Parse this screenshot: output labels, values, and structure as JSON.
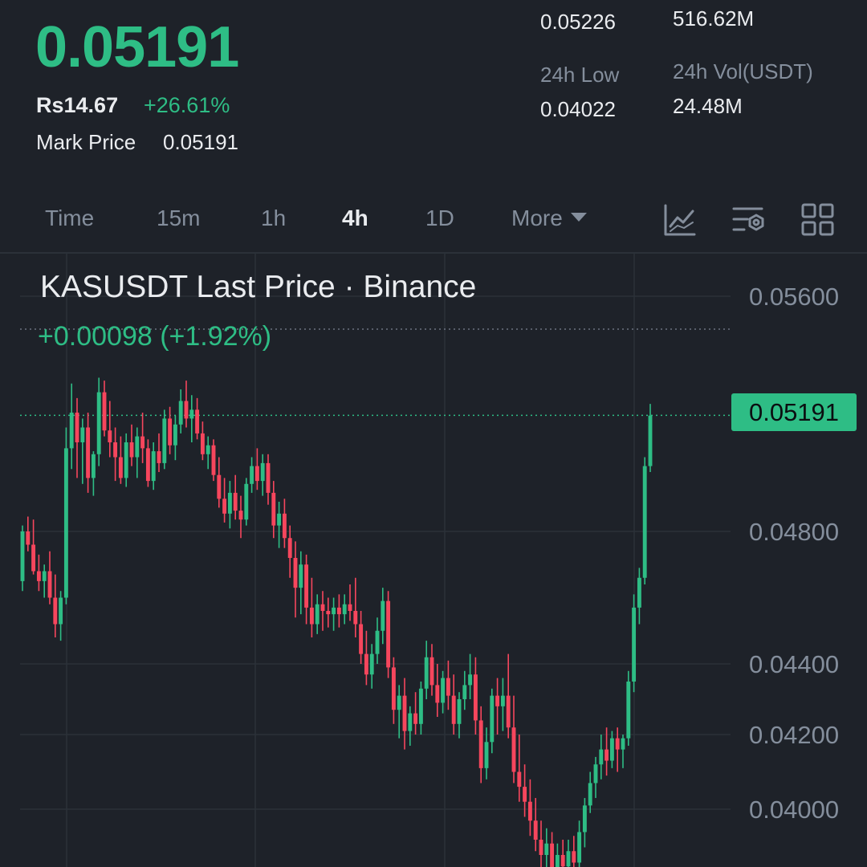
{
  "header": {
    "last_price": "0.05191",
    "fiat_price": "Rs14.67",
    "change_pct": "+26.61%",
    "mark_price_label": "Mark Price",
    "mark_price_value": "0.05191",
    "stats": {
      "high_value": "0.05226",
      "vol_kas_value": "516.62M",
      "low_label": "24h Low",
      "low_value": "0.04022",
      "vol_usdt_label": "24h Vol(USDT)",
      "vol_usdt_value": "24.48M"
    }
  },
  "timeframe_tabs": [
    {
      "label": "Time",
      "active": false
    },
    {
      "label": "15m",
      "active": false
    },
    {
      "label": "1h",
      "active": false
    },
    {
      "label": "4h",
      "active": true
    },
    {
      "label": "1D",
      "active": false
    },
    {
      "label": "More",
      "active": false
    }
  ],
  "toolbar_icons": [
    "indicator-icon",
    "chart-settings-icon",
    "grid-layout-icon"
  ],
  "colors": {
    "up": "#2ebd85",
    "down": "#f6465d",
    "background": "#1e2229",
    "grid": "#2b3139"
  },
  "chart_data": {
    "type": "candlestick",
    "title": "KASUSDT Last Price · Binance",
    "change_text": "+0.00098 (+1.92%)",
    "y_ticks": [
      "0.05600",
      "0.04800",
      "0.04400",
      "0.04200",
      "0.04000"
    ],
    "y_tick_values": [
      0.056,
      0.048,
      0.044,
      0.042,
      0.04
    ],
    "current_price_label": "0.05191",
    "current_price": 0.05191,
    "ylim": [
      0.0385,
      0.0575
    ],
    "candles": [
      [
        0.0465,
        0.0482,
        0.0462,
        0.048
      ],
      [
        0.048,
        0.0485,
        0.0474,
        0.0476
      ],
      [
        0.0476,
        0.0484,
        0.0467,
        0.0468
      ],
      [
        0.0468,
        0.0473,
        0.0462,
        0.0465
      ],
      [
        0.0465,
        0.047,
        0.046,
        0.0468
      ],
      [
        0.0468,
        0.0474,
        0.0458,
        0.046
      ],
      [
        0.046,
        0.0467,
        0.0448,
        0.0452
      ],
      [
        0.0452,
        0.0462,
        0.0447,
        0.046
      ],
      [
        0.046,
        0.0515,
        0.0458,
        0.0508
      ],
      [
        0.0508,
        0.053,
        0.0501,
        0.052
      ],
      [
        0.052,
        0.0525,
        0.0498,
        0.051
      ],
      [
        0.051,
        0.0518,
        0.0496,
        0.0515
      ],
      [
        0.0515,
        0.052,
        0.0493,
        0.0498
      ],
      [
        0.0498,
        0.0507,
        0.0492,
        0.0506
      ],
      [
        0.0506,
        0.0532,
        0.0502,
        0.0527
      ],
      [
        0.0527,
        0.0531,
        0.0512,
        0.0514
      ],
      [
        0.0514,
        0.0524,
        0.0505,
        0.051
      ],
      [
        0.051,
        0.0515,
        0.0497,
        0.0505
      ],
      [
        0.0505,
        0.0512,
        0.0496,
        0.0498
      ],
      [
        0.0498,
        0.0513,
        0.0495,
        0.051
      ],
      [
        0.051,
        0.0516,
        0.0502,
        0.0505
      ],
      [
        0.0505,
        0.0515,
        0.0498,
        0.0512
      ],
      [
        0.0512,
        0.052,
        0.0503,
        0.0508
      ],
      [
        0.0508,
        0.0511,
        0.0495,
        0.0497
      ],
      [
        0.0497,
        0.051,
        0.0494,
        0.0507
      ],
      [
        0.0507,
        0.0513,
        0.05,
        0.0503
      ],
      [
        0.0503,
        0.0521,
        0.0501,
        0.0518
      ],
      [
        0.0518,
        0.0522,
        0.0506,
        0.0509
      ],
      [
        0.0509,
        0.0519,
        0.0504,
        0.0516
      ],
      [
        0.0516,
        0.0528,
        0.0513,
        0.0524
      ],
      [
        0.0524,
        0.0531,
        0.0515,
        0.0518
      ],
      [
        0.0518,
        0.0526,
        0.051,
        0.0521
      ],
      [
        0.0521,
        0.0525,
        0.0511,
        0.0513
      ],
      [
        0.0513,
        0.0517,
        0.0504,
        0.0506
      ],
      [
        0.0506,
        0.0512,
        0.0501,
        0.0509
      ],
      [
        0.0509,
        0.0511,
        0.0497,
        0.0499
      ],
      [
        0.0499,
        0.0505,
        0.0488,
        0.0491
      ],
      [
        0.0491,
        0.0498,
        0.0483,
        0.0486
      ],
      [
        0.0486,
        0.0497,
        0.0481,
        0.0493
      ],
      [
        0.0493,
        0.0499,
        0.0484,
        0.0487
      ],
      [
        0.0487,
        0.0492,
        0.0478,
        0.0484
      ],
      [
        0.0484,
        0.0498,
        0.0482,
        0.0496
      ],
      [
        0.0496,
        0.0505,
        0.0493,
        0.0502
      ],
      [
        0.0502,
        0.0508,
        0.0494,
        0.0497
      ],
      [
        0.0497,
        0.0506,
        0.0492,
        0.0503
      ],
      [
        0.0503,
        0.0506,
        0.0489,
        0.0493
      ],
      [
        0.0493,
        0.0497,
        0.0478,
        0.0482
      ],
      [
        0.0482,
        0.049,
        0.0475,
        0.0486
      ],
      [
        0.0486,
        0.0491,
        0.0475,
        0.0478
      ],
      [
        0.0478,
        0.0482,
        0.0466,
        0.0472
      ],
      [
        0.0472,
        0.0477,
        0.0454,
        0.0463
      ],
      [
        0.0463,
        0.0474,
        0.0455,
        0.047
      ],
      [
        0.047,
        0.0473,
        0.0452,
        0.0457
      ],
      [
        0.0457,
        0.0466,
        0.0448,
        0.0452
      ],
      [
        0.0452,
        0.0461,
        0.0449,
        0.0458
      ],
      [
        0.0458,
        0.0462,
        0.045,
        0.0456
      ],
      [
        0.0456,
        0.046,
        0.0451,
        0.0455
      ],
      [
        0.0455,
        0.046,
        0.045,
        0.0457
      ],
      [
        0.0457,
        0.0461,
        0.0451,
        0.0455
      ],
      [
        0.0455,
        0.0461,
        0.0452,
        0.0458
      ],
      [
        0.0458,
        0.0464,
        0.0453,
        0.0456
      ],
      [
        0.0456,
        0.0466,
        0.0448,
        0.0452
      ],
      [
        0.0452,
        0.0456,
        0.044,
        0.0443
      ],
      [
        0.0443,
        0.045,
        0.0434,
        0.0437
      ],
      [
        0.0437,
        0.0446,
        0.0433,
        0.0443
      ],
      [
        0.0443,
        0.0454,
        0.044,
        0.045
      ],
      [
        0.045,
        0.0463,
        0.0446,
        0.0459
      ],
      [
        0.0459,
        0.0462,
        0.0436,
        0.0439
      ],
      [
        0.0439,
        0.0442,
        0.0423,
        0.0427
      ],
      [
        0.0427,
        0.0434,
        0.0419,
        0.0431
      ],
      [
        0.0431,
        0.0436,
        0.0416,
        0.0421
      ],
      [
        0.0421,
        0.0428,
        0.0417,
        0.0426
      ],
      [
        0.0426,
        0.0432,
        0.042,
        0.0423
      ],
      [
        0.0423,
        0.0435,
        0.042,
        0.0433
      ],
      [
        0.0433,
        0.0447,
        0.043,
        0.0442
      ],
      [
        0.0442,
        0.0446,
        0.0431,
        0.0434
      ],
      [
        0.0434,
        0.044,
        0.0425,
        0.0429
      ],
      [
        0.0429,
        0.0438,
        0.0426,
        0.0436
      ],
      [
        0.0436,
        0.0441,
        0.0427,
        0.0431
      ],
      [
        0.0431,
        0.0437,
        0.042,
        0.0423
      ],
      [
        0.0423,
        0.0432,
        0.0419,
        0.043
      ],
      [
        0.043,
        0.0438,
        0.0427,
        0.0434
      ],
      [
        0.0434,
        0.0443,
        0.043,
        0.0437
      ],
      [
        0.0437,
        0.0442,
        0.042,
        0.0424
      ],
      [
        0.0424,
        0.0428,
        0.0407,
        0.0411
      ],
      [
        0.0411,
        0.0422,
        0.0408,
        0.0418
      ],
      [
        0.0418,
        0.0433,
        0.0415,
        0.0431
      ],
      [
        0.0431,
        0.0436,
        0.042,
        0.0428
      ],
      [
        0.0428,
        0.0436,
        0.0421,
        0.0431
      ],
      [
        0.0431,
        0.0443,
        0.0419,
        0.0422
      ],
      [
        0.0422,
        0.0431,
        0.0407,
        0.041
      ],
      [
        0.041,
        0.042,
        0.0402,
        0.0406
      ],
      [
        0.0406,
        0.0412,
        0.0398,
        0.0402
      ],
      [
        0.0402,
        0.0408,
        0.0393,
        0.0397
      ],
      [
        0.0397,
        0.0403,
        0.0389,
        0.0392
      ],
      [
        0.0392,
        0.0397,
        0.0384,
        0.0388
      ],
      [
        0.0388,
        0.0395,
        0.0383,
        0.0391
      ],
      [
        0.0391,
        0.0394,
        0.038,
        0.0384
      ],
      [
        0.0384,
        0.0391,
        0.0379,
        0.0388
      ],
      [
        0.0388,
        0.0392,
        0.038,
        0.0385
      ],
      [
        0.0385,
        0.0392,
        0.0381,
        0.0389
      ],
      [
        0.0389,
        0.0393,
        0.0382,
        0.0386
      ],
      [
        0.0386,
        0.0397,
        0.0384,
        0.0394
      ],
      [
        0.0394,
        0.0403,
        0.039,
        0.0401
      ],
      [
        0.0401,
        0.041,
        0.0399,
        0.0407
      ],
      [
        0.0407,
        0.0414,
        0.0403,
        0.0412
      ],
      [
        0.0412,
        0.042,
        0.0408,
        0.0416
      ],
      [
        0.0416,
        0.0422,
        0.0409,
        0.0413
      ],
      [
        0.0413,
        0.0421,
        0.0411,
        0.0419
      ],
      [
        0.0419,
        0.0422,
        0.041,
        0.0416
      ],
      [
        0.0416,
        0.042,
        0.0411,
        0.0419
      ],
      [
        0.0419,
        0.0438,
        0.0417,
        0.0435
      ],
      [
        0.0435,
        0.0461,
        0.0432,
        0.0457
      ],
      [
        0.0457,
        0.0469,
        0.0452,
        0.0466
      ],
      [
        0.0466,
        0.0505,
        0.0464,
        0.0502
      ],
      [
        0.0502,
        0.0523,
        0.05,
        0.0519
      ]
    ]
  }
}
